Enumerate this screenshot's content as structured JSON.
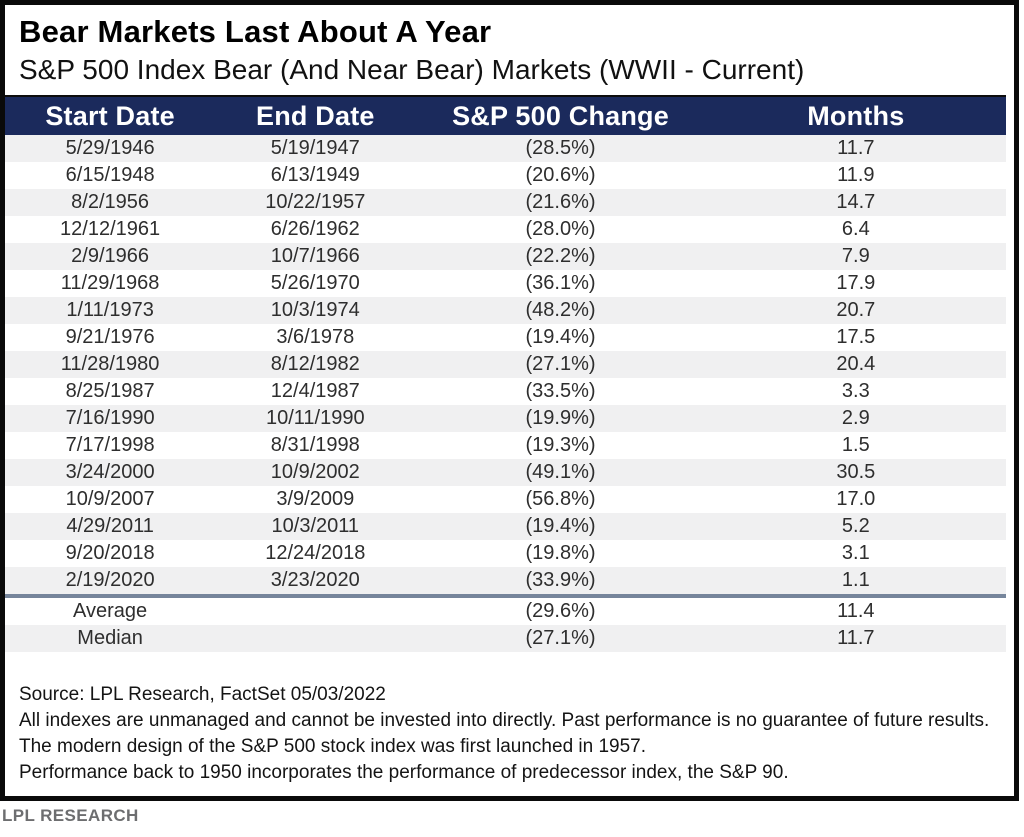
{
  "title": "Bear Markets Last About A Year",
  "subtitle": "S&P 500 Index Bear (And Near Bear) Markets (WWII - Current)",
  "colors": {
    "header_bg": "#1b2a5c",
    "header_text": "#ffffff",
    "negative_text": "#9e3c40",
    "row_stripe": "#f0f0f1",
    "summary_separator": "#76859b",
    "frame_border": "#0a0a0a",
    "branding_text": "#6d6e70"
  },
  "chart_data": {
    "type": "table",
    "title": "Bear Markets Last About A Year",
    "subtitle": "S&P 500 Index Bear (And Near Bear) Markets (WWII - Current)",
    "columns": [
      "Start Date",
      "End Date",
      "S&P 500 Change",
      "Months"
    ],
    "rows": [
      [
        "5/29/1946",
        "5/19/1947",
        "(28.5%)",
        "11.7"
      ],
      [
        "6/15/1948",
        "6/13/1949",
        "(20.6%)",
        "11.9"
      ],
      [
        "8/2/1956",
        "10/22/1957",
        "(21.6%)",
        "14.7"
      ],
      [
        "12/12/1961",
        "6/26/1962",
        "(28.0%)",
        "6.4"
      ],
      [
        "2/9/1966",
        "10/7/1966",
        "(22.2%)",
        "7.9"
      ],
      [
        "11/29/1968",
        "5/26/1970",
        "(36.1%)",
        "17.9"
      ],
      [
        "1/11/1973",
        "10/3/1974",
        "(48.2%)",
        "20.7"
      ],
      [
        "9/21/1976",
        "3/6/1978",
        "(19.4%)",
        "17.5"
      ],
      [
        "11/28/1980",
        "8/12/1982",
        "(27.1%)",
        "20.4"
      ],
      [
        "8/25/1987",
        "12/4/1987",
        "(33.5%)",
        "3.3"
      ],
      [
        "7/16/1990",
        "10/11/1990",
        "(19.9%)",
        "2.9"
      ],
      [
        "7/17/1998",
        "8/31/1998",
        "(19.3%)",
        "1.5"
      ],
      [
        "3/24/2000",
        "10/9/2002",
        "(49.1%)",
        "30.5"
      ],
      [
        "10/9/2007",
        "3/9/2009",
        "(56.8%)",
        "17.0"
      ],
      [
        "4/29/2011",
        "10/3/2011",
        "(19.4%)",
        "5.2"
      ],
      [
        "9/20/2018",
        "12/24/2018",
        "(19.8%)",
        "3.1"
      ],
      [
        "2/19/2020",
        "3/23/2020",
        "(33.9%)",
        "1.1"
      ]
    ],
    "summary_rows": [
      [
        "Average",
        "",
        "(29.6%)",
        "11.4"
      ],
      [
        "Median",
        "",
        "(27.1%)",
        "11.7"
      ]
    ],
    "layout_hints": {
      "striped": true,
      "first_row_striped": true,
      "negative_values_in_parentheses_red": true
    }
  },
  "footer": {
    "lines": [
      "Source: LPL Research, FactSet 05/03/2022",
      "All indexes are unmanaged and cannot be invested into directly. Past performance is no guarantee of future results.",
      "The modern design of the S&P 500 stock index was first launched in 1957.",
      "Performance back to 1950 incorporates the performance of predecessor index, the S&P 90."
    ]
  },
  "branding": "LPL RESEARCH"
}
